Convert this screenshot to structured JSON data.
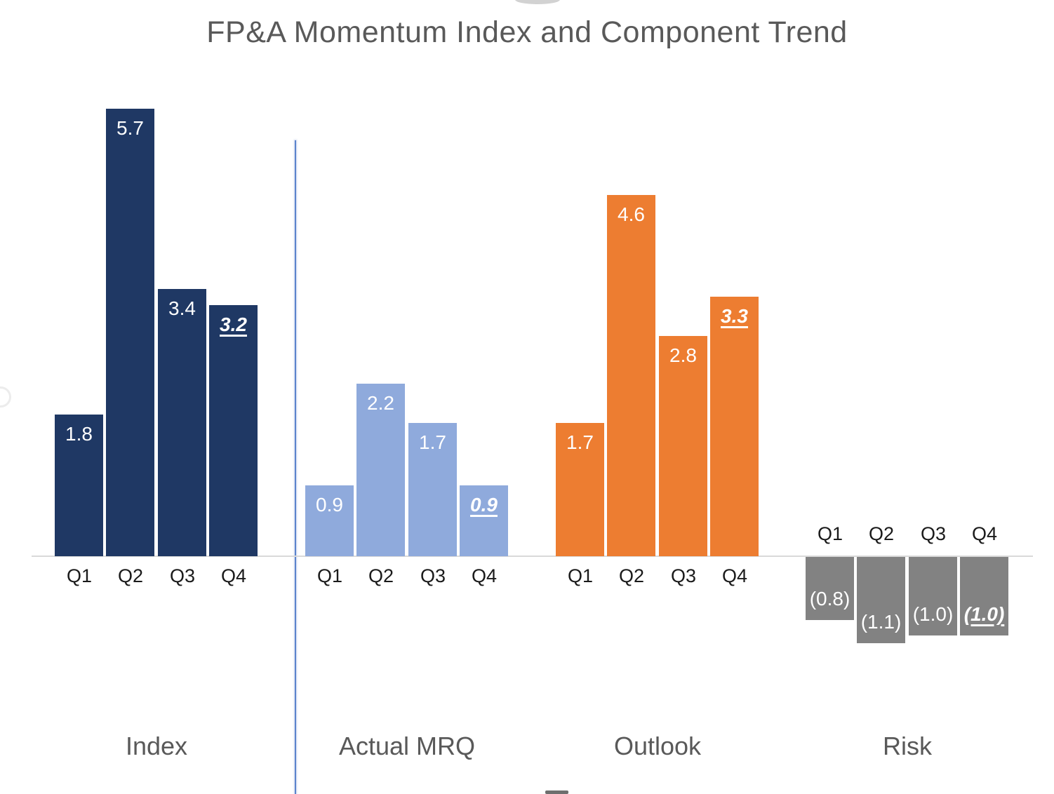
{
  "chart_data": {
    "type": "bar",
    "title": "FP&A Momentum Index and Component Trend",
    "title_color": "#595959",
    "categories": [
      "Q1",
      "Q2",
      "Q3",
      "Q4"
    ],
    "ylim": [
      -1.5,
      6.0
    ],
    "grid": false,
    "legend": "none",
    "y_axis_visible": false,
    "baseline_color": "#d9d9d9",
    "separator_line_color": "#5b84cd",
    "separator_after_group": "Index",
    "value_label_color": "#ffffff",
    "category_label_color": "#1a1a1a",
    "group_label_color": "#595959",
    "groups": [
      {
        "name": "Index",
        "color": "#1f3864",
        "bars": [
          {
            "category": "Q1",
            "value": 1.8,
            "label": "1.8",
            "emphasized": false
          },
          {
            "category": "Q2",
            "value": 5.7,
            "label": "5.7",
            "emphasized": false
          },
          {
            "category": "Q3",
            "value": 3.4,
            "label": "3.4",
            "emphasized": false
          },
          {
            "category": "Q4",
            "value": 3.2,
            "label": "3.2",
            "emphasized": true
          }
        ]
      },
      {
        "name": "Actual MRQ",
        "color": "#8faadc",
        "bars": [
          {
            "category": "Q1",
            "value": 0.9,
            "label": "0.9",
            "emphasized": false
          },
          {
            "category": "Q2",
            "value": 2.2,
            "label": "2.2",
            "emphasized": false
          },
          {
            "category": "Q3",
            "value": 1.7,
            "label": "1.7",
            "emphasized": false
          },
          {
            "category": "Q4",
            "value": 0.9,
            "label": "0.9",
            "emphasized": true
          }
        ]
      },
      {
        "name": "Outlook",
        "color": "#ed7d31",
        "bars": [
          {
            "category": "Q1",
            "value": 1.7,
            "label": "1.7",
            "emphasized": false
          },
          {
            "category": "Q2",
            "value": 4.6,
            "label": "4.6",
            "emphasized": false
          },
          {
            "category": "Q3",
            "value": 2.8,
            "label": "2.8",
            "emphasized": false
          },
          {
            "category": "Q4",
            "value": 3.3,
            "label": "3.3",
            "emphasized": true
          }
        ]
      },
      {
        "name": "Risk",
        "color": "#828282",
        "bars": [
          {
            "category": "Q1",
            "value": -0.8,
            "label": "(0.8)",
            "emphasized": false
          },
          {
            "category": "Q2",
            "value": -1.1,
            "label": "(1.1)",
            "emphasized": false
          },
          {
            "category": "Q3",
            "value": -1.0,
            "label": "(1.0)",
            "emphasized": false
          },
          {
            "category": "Q4",
            "value": -1.0,
            "label": "(1.0)",
            "emphasized": true
          }
        ]
      }
    ]
  }
}
